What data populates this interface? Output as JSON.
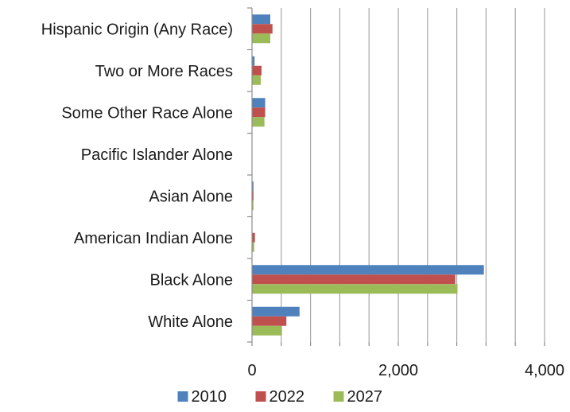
{
  "chart_data": {
    "type": "bar",
    "orientation": "horizontal",
    "categories": [
      "White Alone",
      "Black Alone",
      "American Indian Alone",
      "Asian Alone",
      "Pacific Islander Alone",
      "Some Other Race Alone",
      "Two or More Races",
      "Hispanic Origin (Any Race)"
    ],
    "series": [
      {
        "name": "2010",
        "color": "#4f81bd",
        "values": [
          650,
          3170,
          5,
          20,
          0,
          180,
          35,
          250
        ]
      },
      {
        "name": "2022",
        "color": "#c0504d",
        "values": [
          470,
          2780,
          40,
          20,
          0,
          180,
          130,
          280
        ]
      },
      {
        "name": "2027",
        "color": "#9bbb59",
        "values": [
          410,
          2810,
          30,
          20,
          0,
          170,
          120,
          250
        ]
      }
    ],
    "x_ticks": [
      "0",
      "2,000",
      "4,000"
    ],
    "xlim": [
      0,
      4000
    ],
    "grid": true,
    "legend_position": "bottom",
    "title": "",
    "xlabel": "",
    "ylabel": ""
  }
}
